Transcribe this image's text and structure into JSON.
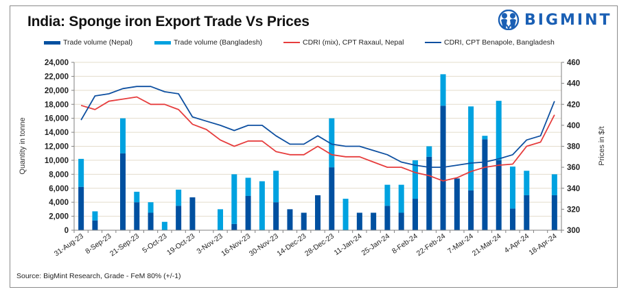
{
  "title": "India: Sponge iron Export Trade Vs Prices",
  "logo": {
    "text": "BIGMINT",
    "icon": "bigmint-people-icon",
    "color": "#1a5fb4"
  },
  "source": "Source: BigMint Research, Grade - FeM 80% (+/-1)",
  "colors": {
    "nepal": "#0050a0",
    "bangladesh": "#00a2e0",
    "raxaul": "#e63c3c",
    "benapole": "#0d4fa0",
    "grid": "#e3dccb",
    "axis": "#7f7f7f"
  },
  "chart_data": {
    "type": "bar",
    "title": "India: Sponge iron Export Trade Vs Prices",
    "xlabel": "",
    "ylabel": "Quantity in tonne",
    "y2label": "Prices in $/t",
    "ylim": [
      0,
      24000
    ],
    "yticks": [
      "0",
      "2,000",
      "4,000",
      "6,000",
      "8,000",
      "10,000",
      "12,000",
      "14,000",
      "16,000",
      "18,000",
      "20,000",
      "22,000",
      "24,000"
    ],
    "y2lim": [
      300,
      460
    ],
    "y2ticks": [
      "300",
      "320",
      "340",
      "360",
      "380",
      "400",
      "420",
      "440",
      "460"
    ],
    "grid": true,
    "legend_position": "top",
    "categories": [
      "31-Aug-23",
      "",
      "8-Sep-23",
      "",
      "21-Sep-23",
      "",
      "5-Oct-23",
      "",
      "19-Oct-23",
      "",
      "3-Nov-23",
      "",
      "16-Nov-23",
      "",
      "30-Nov-23",
      "",
      "14-Dec-23",
      "",
      "28-Dec-23",
      "",
      "11-Jan-24",
      "",
      "25-Jan-24",
      "",
      "8-Feb-24",
      "",
      "22-Feb-24",
      "",
      "7-Mar-24",
      "",
      "21-Mar-24",
      "",
      "4-Apr-24",
      "",
      "18-Apr-24"
    ],
    "x_tick_labels": [
      "31-Aug-23",
      "8-Sep-23",
      "21-Sep-23",
      "5-Oct-23",
      "19-Oct-23",
      "3-Nov-23",
      "16-Nov-23",
      "30-Nov-23",
      "14-Dec-23",
      "28-Dec-23",
      "11-Jan-24",
      "25-Jan-24",
      "8-Feb-24",
      "22-Feb-24",
      "7-Mar-24",
      "21-Mar-24",
      "4-Apr-24",
      "18-Apr-24"
    ],
    "series": [
      {
        "name": "Trade volume (Nepal)",
        "kind": "bar",
        "axis": "left",
        "values": [
          6200,
          1400,
          0,
          11000,
          4000,
          2500,
          0,
          3500,
          4700,
          0,
          0,
          900,
          4900,
          0,
          4000,
          3000,
          2500,
          5000,
          9000,
          0,
          2500,
          2500,
          3500,
          2500,
          4500,
          10500,
          17800,
          7400,
          5700,
          13000,
          10000,
          3100,
          5000,
          0,
          5000
        ]
      },
      {
        "name": "Trade volume (Bangladesh)",
        "kind": "bar",
        "axis": "left",
        "stacked": true,
        "values": [
          4000,
          1300,
          0,
          5000,
          1500,
          1500,
          1200,
          2300,
          0,
          0,
          3000,
          7100,
          2600,
          7000,
          4500,
          0,
          0,
          0,
          7000,
          4500,
          0,
          0,
          3000,
          4000,
          5500,
          1500,
          4500,
          0,
          12000,
          500,
          8500,
          6000,
          3500,
          0,
          3000
        ]
      },
      {
        "name": "CDRI (mix), CPT Raxaul, Nepal",
        "kind": "line",
        "axis": "right",
        "values": [
          419,
          415,
          423,
          425,
          427,
          420,
          420,
          415,
          401,
          396,
          386,
          380,
          385,
          385,
          375,
          372,
          372,
          380,
          372,
          370,
          370,
          365,
          360,
          360,
          355,
          352,
          347,
          350,
          356,
          360,
          362,
          363,
          380,
          384,
          410
        ]
      },
      {
        "name": "CDRI, CPT Benapole, Bangladesh",
        "kind": "line",
        "axis": "right",
        "values": [
          405,
          428,
          430,
          435,
          437,
          437,
          432,
          430,
          408,
          404,
          400,
          395,
          400,
          400,
          390,
          382,
          382,
          390,
          382,
          380,
          380,
          376,
          372,
          365,
          362,
          360,
          360,
          362,
          364,
          365,
          368,
          372,
          386,
          390,
          423
        ]
      }
    ]
  }
}
